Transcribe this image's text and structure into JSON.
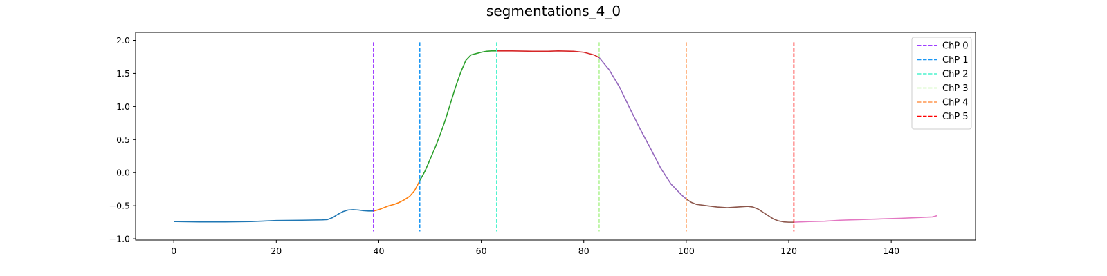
{
  "chart_data": {
    "type": "line",
    "title": "segmentations_4_0",
    "xlabel": "",
    "ylabel": "",
    "xlim": [
      -7.45,
      156.45
    ],
    "ylim": [
      -1.02,
      2.12
    ],
    "xticks": [
      0,
      20,
      40,
      60,
      80,
      100,
      120,
      140
    ],
    "xtick_labels": [
      "0",
      "20",
      "40",
      "60",
      "80",
      "100",
      "120",
      "140"
    ],
    "yticks": [
      -1.0,
      -0.5,
      0.0,
      0.5,
      1.0,
      1.5,
      2.0
    ],
    "ytick_labels": [
      "−1.0",
      "−0.5",
      "0.0",
      "0.5",
      "1.0",
      "1.5",
      "2.0"
    ],
    "grid": false,
    "legend_position": "top-right",
    "series": [
      {
        "color": "#1f77b4",
        "x": [
          0,
          5,
          10,
          15,
          20,
          25,
          29,
          30,
          31,
          32,
          33,
          34,
          35,
          36,
          37,
          38,
          39
        ],
        "y": [
          -0.74,
          -0.745,
          -0.745,
          -0.74,
          -0.725,
          -0.72,
          -0.715,
          -0.71,
          -0.68,
          -0.63,
          -0.59,
          -0.565,
          -0.56,
          -0.565,
          -0.575,
          -0.58,
          -0.58
        ]
      },
      {
        "color": "#ff7f0e",
        "x": [
          39,
          40,
          41,
          42,
          43,
          44,
          45,
          46,
          47,
          48
        ],
        "y": [
          -0.58,
          -0.56,
          -0.53,
          -0.5,
          -0.48,
          -0.45,
          -0.41,
          -0.36,
          -0.27,
          -0.12
        ]
      },
      {
        "color": "#2ca02c",
        "x": [
          48,
          49,
          50,
          51,
          52,
          53,
          54,
          55,
          56,
          57,
          58,
          59,
          60,
          61,
          62,
          63
        ],
        "y": [
          -0.12,
          0.02,
          0.2,
          0.38,
          0.58,
          0.8,
          1.05,
          1.3,
          1.52,
          1.7,
          1.78,
          1.8,
          1.82,
          1.835,
          1.84,
          1.84
        ]
      },
      {
        "color": "#d62728",
        "x": [
          63,
          66,
          70,
          73,
          75,
          78,
          80,
          82,
          83
        ],
        "y": [
          1.84,
          1.84,
          1.835,
          1.835,
          1.84,
          1.835,
          1.82,
          1.78,
          1.74
        ]
      },
      {
        "color": "#9467bd",
        "x": [
          83,
          85,
          87,
          89,
          91,
          93,
          95,
          97,
          99,
          100
        ],
        "y": [
          1.74,
          1.55,
          1.29,
          0.97,
          0.66,
          0.37,
          0.07,
          -0.17,
          -0.33,
          -0.4
        ]
      },
      {
        "color": "#8c564b",
        "x": [
          100,
          101,
          102,
          104,
          106,
          108,
          110,
          112,
          113,
          114,
          115,
          116,
          117,
          118,
          119,
          120,
          121
        ],
        "y": [
          -0.4,
          -0.45,
          -0.48,
          -0.5,
          -0.52,
          -0.53,
          -0.52,
          -0.51,
          -0.52,
          -0.55,
          -0.6,
          -0.65,
          -0.7,
          -0.73,
          -0.745,
          -0.75,
          -0.75
        ]
      },
      {
        "color": "#e377c2",
        "x": [
          121,
          124,
          127,
          130,
          134,
          138,
          142,
          145,
          148,
          149
        ],
        "y": [
          -0.75,
          -0.74,
          -0.735,
          -0.72,
          -0.71,
          -0.7,
          -0.69,
          -0.68,
          -0.67,
          -0.65
        ]
      }
    ],
    "changepoints": [
      {
        "name": "ChP 0",
        "x": 39,
        "color": "#7f00ff"
      },
      {
        "name": "ChP 1",
        "x": 48,
        "color": "#1996f3"
      },
      {
        "name": "ChP 2",
        "x": 63,
        "color": "#4df3ce"
      },
      {
        "name": "ChP 3",
        "x": 83,
        "color": "#b2f396"
      },
      {
        "name": "ChP 4",
        "x": 100,
        "color": "#ff964f"
      },
      {
        "name": "ChP 5",
        "x": 121,
        "color": "#ff0000"
      }
    ],
    "changepoint_ymin": -0.89,
    "changepoint_ymax": 1.97
  }
}
